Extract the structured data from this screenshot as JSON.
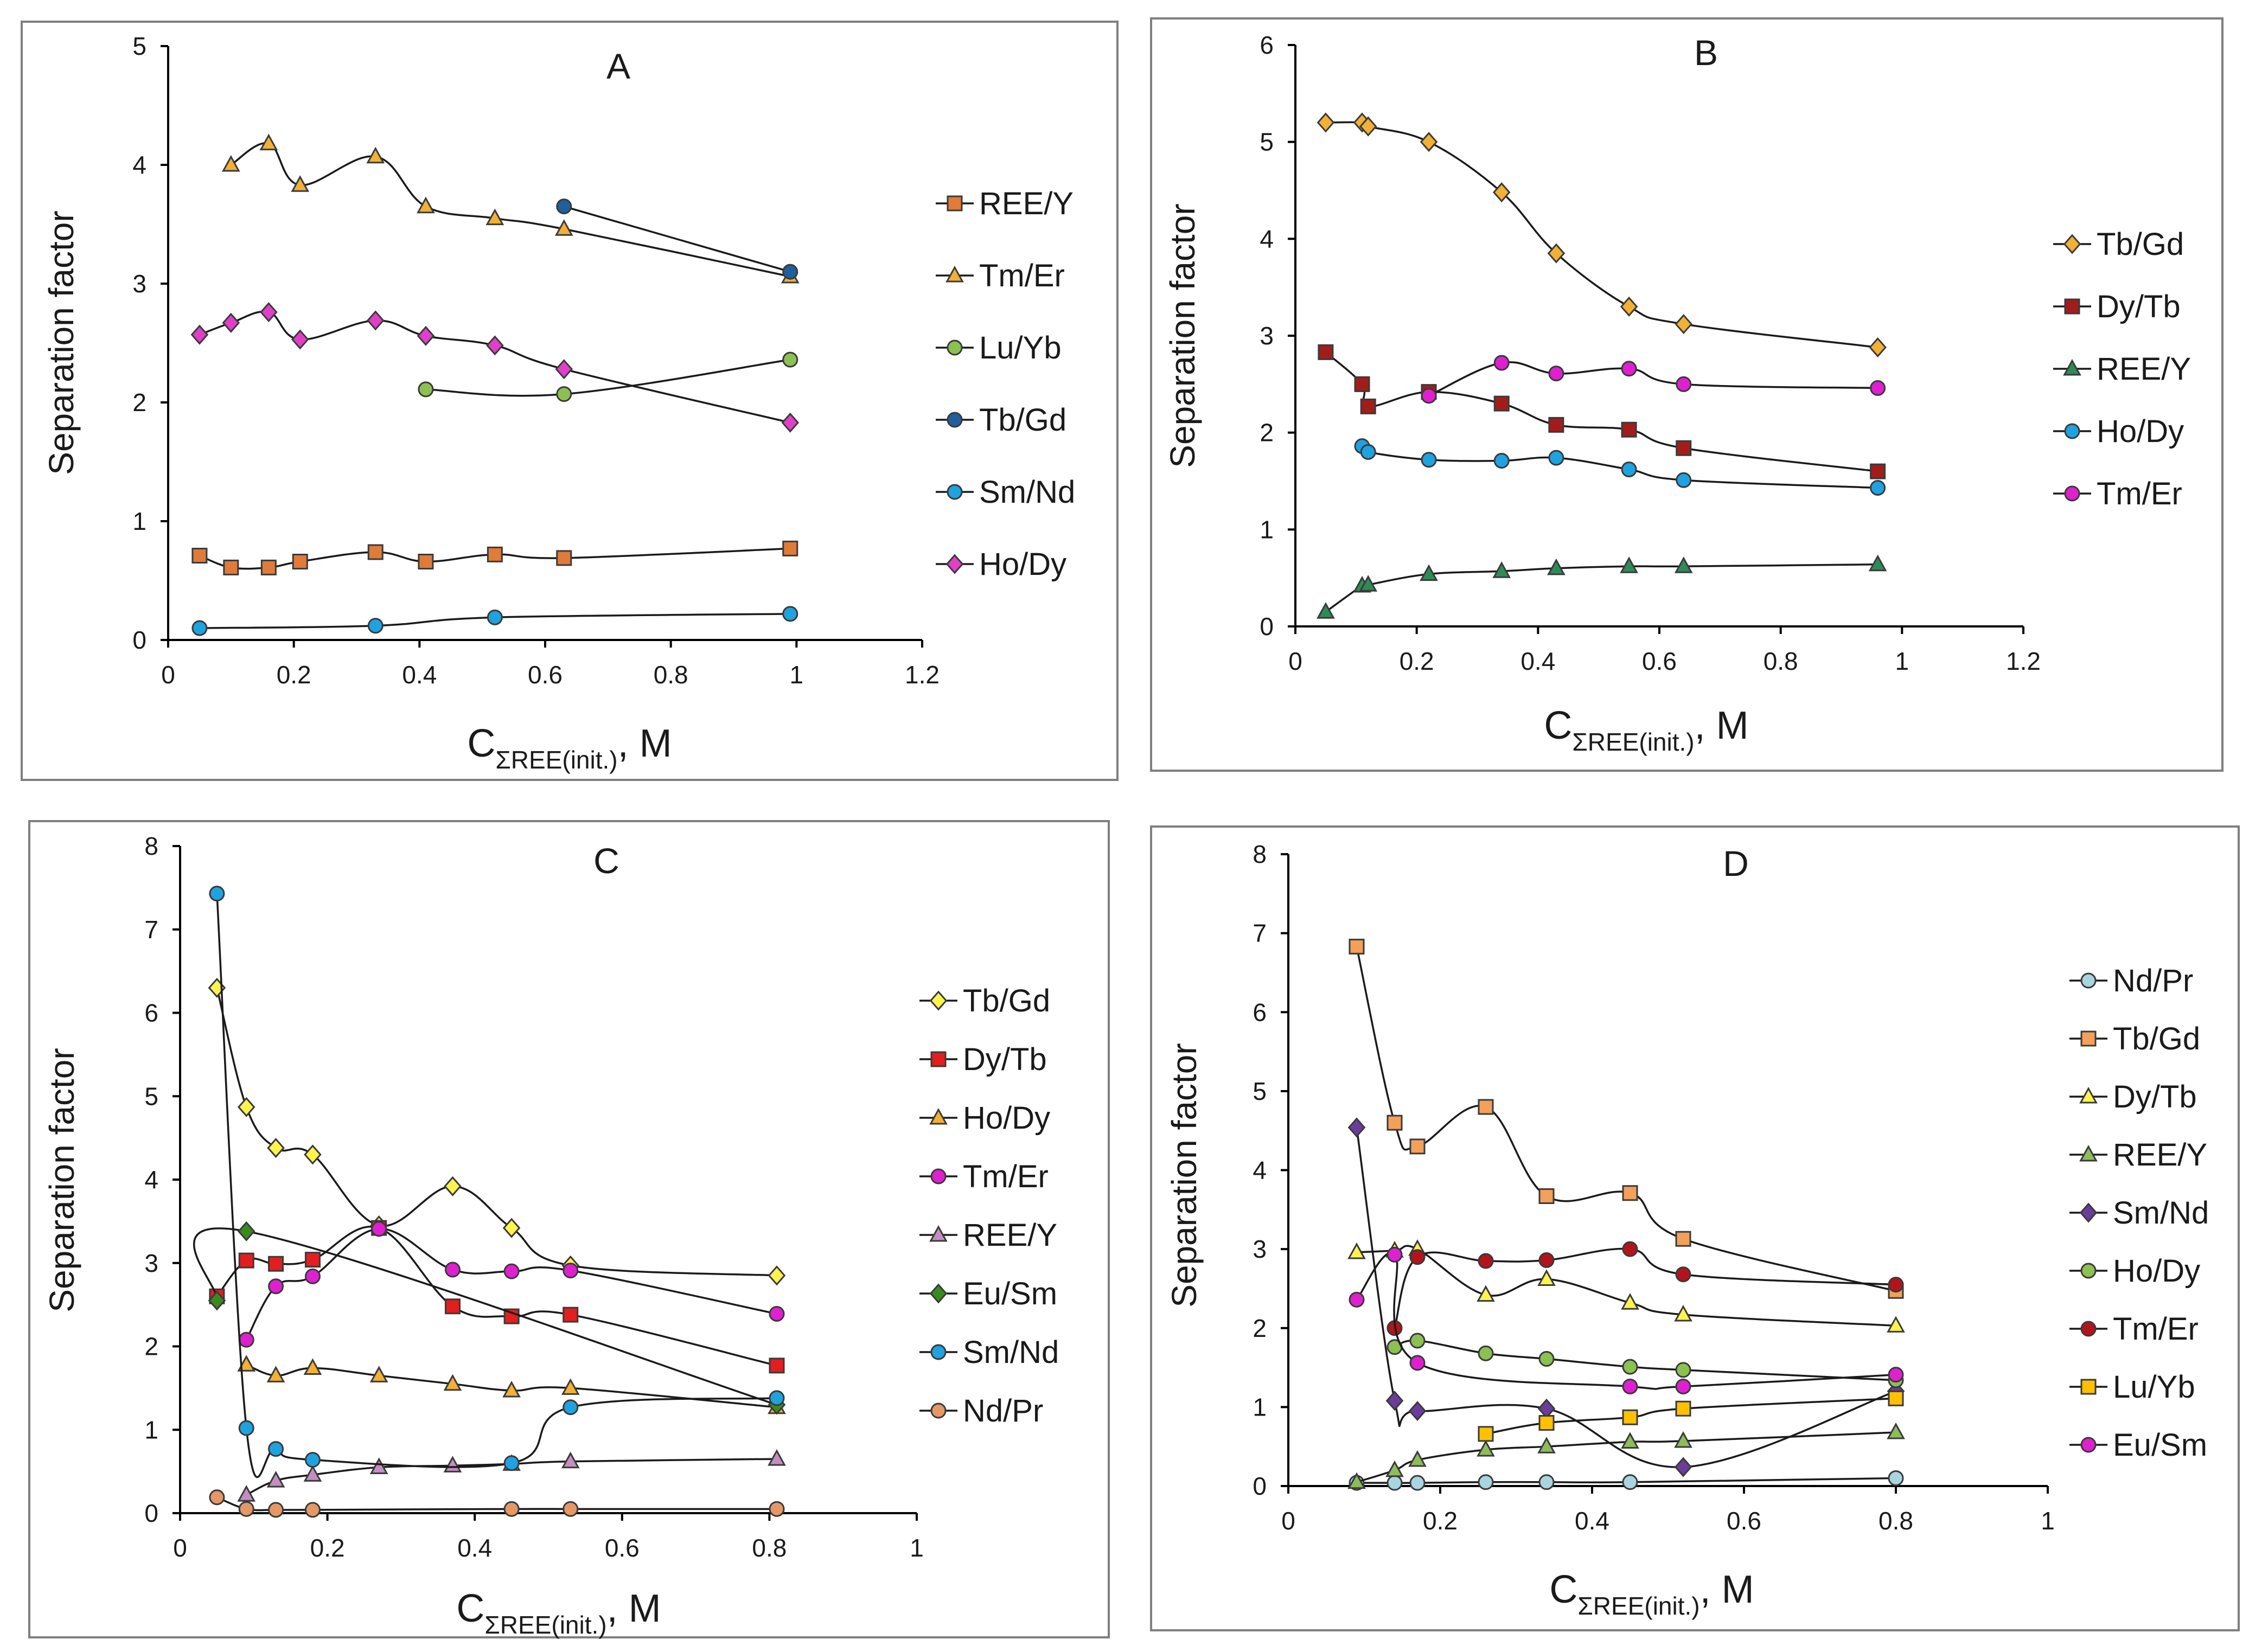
{
  "chart_data": [
    {
      "type": "line",
      "panel": "A",
      "title": "A",
      "ylabel": "Separation factor",
      "xlabel": {
        "main": "C",
        "sub": "ΣREE(init.)",
        "unit": ", M"
      },
      "xlim": [
        0,
        1.2
      ],
      "ylim": [
        0,
        5
      ],
      "xticks": [
        "0",
        "0.2",
        "0.4",
        "0.6",
        "0.8",
        "1",
        "1.2"
      ],
      "yticks": [
        "0",
        "1",
        "2",
        "3",
        "4",
        "5"
      ],
      "series": [
        {
          "name": "REE/Y",
          "marker": "square",
          "color": "#e07b39",
          "x": [
            0.05,
            0.1,
            0.16,
            0.21,
            0.33,
            0.41,
            0.52,
            0.63,
            0.99
          ],
          "y": [
            0.71,
            0.61,
            0.61,
            0.66,
            0.74,
            0.66,
            0.72,
            0.69,
            0.77
          ]
        },
        {
          "name": "Tm/Er",
          "marker": "triangle",
          "color": "#f2b035",
          "x": [
            0.1,
            0.16,
            0.21,
            0.33,
            0.41,
            0.52,
            0.63,
            0.99
          ],
          "y": [
            4.0,
            4.18,
            3.83,
            4.07,
            3.65,
            3.55,
            3.46,
            3.06
          ]
        },
        {
          "name": "Lu/Yb",
          "marker": "circle",
          "color": "#8cc152",
          "x": [
            0.41,
            0.63,
            0.99
          ],
          "y": [
            2.11,
            2.07,
            2.36
          ]
        },
        {
          "name": "Tb/Gd",
          "marker": "circle",
          "color": "#1f5f9e",
          "x": [
            0.63,
            0.99
          ],
          "y": [
            3.65,
            3.1
          ]
        },
        {
          "name": "Sm/Nd",
          "marker": "circle",
          "color": "#1fa2e0",
          "x": [
            0.05,
            0.33,
            0.52,
            0.99
          ],
          "y": [
            0.1,
            0.12,
            0.19,
            0.22
          ]
        },
        {
          "name": "Ho/Dy",
          "marker": "diamond",
          "color": "#e040c8",
          "x": [
            0.05,
            0.1,
            0.16,
            0.21,
            0.33,
            0.41,
            0.52,
            0.63,
            0.99
          ],
          "y": [
            2.57,
            2.67,
            2.76,
            2.53,
            2.69,
            2.56,
            2.48,
            2.28,
            1.83
          ]
        }
      ]
    },
    {
      "type": "line",
      "panel": "B",
      "title": "B",
      "ylabel": "Separation factor",
      "xlabel": {
        "main": "C",
        "sub": "ΣREE(init.)",
        "unit": ", M"
      },
      "xlim": [
        0,
        1.2
      ],
      "ylim": [
        0,
        6
      ],
      "xticks": [
        "0",
        "0.2",
        "0.4",
        "0.6",
        "0.8",
        "1",
        "1.2"
      ],
      "yticks": [
        "0",
        "1",
        "2",
        "3",
        "4",
        "5",
        "6"
      ],
      "series": [
        {
          "name": "Tb/Gd",
          "marker": "diamond",
          "color": "#f2b035",
          "x": [
            0.05,
            0.11,
            0.12,
            0.22,
            0.34,
            0.43,
            0.55,
            0.64,
            0.96
          ],
          "y": [
            5.2,
            5.2,
            5.16,
            5.0,
            4.48,
            3.85,
            3.3,
            3.12,
            2.88
          ]
        },
        {
          "name": "Dy/Tb",
          "marker": "square",
          "color": "#a31c1c",
          "x": [
            0.05,
            0.11,
            0.12,
            0.22,
            0.34,
            0.43,
            0.55,
            0.64,
            0.96
          ],
          "y": [
            2.83,
            2.5,
            2.27,
            2.42,
            2.3,
            2.08,
            2.03,
            1.84,
            1.6
          ]
        },
        {
          "name": "REE/Y",
          "marker": "triangle",
          "color": "#2e8b57",
          "x": [
            0.05,
            0.11,
            0.12,
            0.22,
            0.34,
            0.43,
            0.55,
            0.64,
            0.96
          ],
          "y": [
            0.15,
            0.42,
            0.43,
            0.54,
            0.57,
            0.6,
            0.62,
            0.62,
            0.64
          ]
        },
        {
          "name": "Ho/Dy",
          "marker": "circle",
          "color": "#1fa2e0",
          "x": [
            0.11,
            0.12,
            0.22,
            0.34,
            0.43,
            0.55,
            0.64,
            0.96
          ],
          "y": [
            1.86,
            1.8,
            1.72,
            1.71,
            1.74,
            1.62,
            1.51,
            1.43
          ]
        },
        {
          "name": "Tm/Er",
          "marker": "circle",
          "color": "#e020d0",
          "x": [
            0.22,
            0.34,
            0.43,
            0.55,
            0.64,
            0.96
          ],
          "y": [
            2.38,
            2.72,
            2.61,
            2.66,
            2.5,
            2.46
          ]
        }
      ]
    },
    {
      "type": "line",
      "panel": "C",
      "title": "C",
      "ylabel": "Separation factor",
      "xlabel": {
        "main": "C",
        "sub": "ΣREE(init.)",
        "unit": ", M"
      },
      "xlim": [
        0,
        1
      ],
      "ylim": [
        0,
        8
      ],
      "xticks": [
        "0",
        "0.2",
        "0.4",
        "0.6",
        "0.8",
        "1"
      ],
      "yticks": [
        "0",
        "1",
        "2",
        "3",
        "4",
        "5",
        "6",
        "7",
        "8"
      ],
      "series": [
        {
          "name": "Tb/Gd",
          "marker": "diamond",
          "color": "#fff34d",
          "x": [
            0.05,
            0.09,
            0.13,
            0.18,
            0.27,
            0.37,
            0.45,
            0.53,
            0.81
          ],
          "y": [
            6.3,
            4.87,
            4.38,
            4.3,
            3.45,
            3.92,
            3.42,
            2.97,
            2.85
          ]
        },
        {
          "name": "Dy/Tb",
          "marker": "square",
          "color": "#e31e1e",
          "x": [
            0.05,
            0.09,
            0.13,
            0.18,
            0.27,
            0.37,
            0.45,
            0.53,
            0.81
          ],
          "y": [
            2.6,
            3.03,
            2.99,
            3.04,
            3.42,
            2.48,
            2.36,
            2.38,
            1.77
          ]
        },
        {
          "name": "Ho/Dy",
          "marker": "triangle",
          "color": "#f2b035",
          "x": [
            0.09,
            0.13,
            0.18,
            0.27,
            0.37,
            0.45,
            0.53,
            0.81
          ],
          "y": [
            1.78,
            1.65,
            1.74,
            1.65,
            1.55,
            1.47,
            1.5,
            1.27
          ]
        },
        {
          "name": "Tm/Er",
          "marker": "circle",
          "color": "#e020d0",
          "x": [
            0.09,
            0.13,
            0.18,
            0.27,
            0.37,
            0.45,
            0.53,
            0.81
          ],
          "y": [
            2.08,
            2.72,
            2.84,
            3.41,
            2.92,
            2.9,
            2.91,
            2.39
          ]
        },
        {
          "name": "REE/Y",
          "marker": "triangle",
          "color": "#c48ec0",
          "x": [
            0.09,
            0.13,
            0.18,
            0.27,
            0.37,
            0.45,
            0.53,
            0.81
          ],
          "y": [
            0.22,
            0.39,
            0.46,
            0.55,
            0.57,
            0.59,
            0.62,
            0.65
          ]
        },
        {
          "name": "Eu/Sm",
          "marker": "diamond",
          "color": "#3a8a1e",
          "x": [
            0.05,
            0.09,
            0.81
          ],
          "y": [
            2.55,
            3.38,
            1.3
          ]
        },
        {
          "name": "Sm/Nd",
          "marker": "circle",
          "color": "#1fa2e0",
          "x": [
            0.05,
            0.09,
            0.13,
            0.18,
            0.45,
            0.53,
            0.81
          ],
          "y": [
            7.43,
            1.02,
            0.77,
            0.64,
            0.6,
            1.27,
            1.38
          ]
        },
        {
          "name": "Nd/Pr",
          "marker": "circle",
          "color": "#e59866",
          "x": [
            0.05,
            0.09,
            0.13,
            0.18,
            0.45,
            0.53,
            0.81
          ],
          "y": [
            0.19,
            0.05,
            0.04,
            0.04,
            0.05,
            0.05,
            0.05
          ]
        }
      ]
    },
    {
      "type": "line",
      "panel": "D",
      "title": "D",
      "ylabel": "Separation factor",
      "xlabel": {
        "main": "C",
        "sub": "ΣREE(init.)",
        "unit": ", M"
      },
      "xlim": [
        0,
        1
      ],
      "ylim": [
        0,
        8
      ],
      "xticks": [
        "0",
        "0.2",
        "0.4",
        "0.6",
        "0.8",
        "1"
      ],
      "yticks": [
        "0",
        "1",
        "2",
        "3",
        "4",
        "5",
        "6",
        "7",
        "8"
      ],
      "series": [
        {
          "name": "Nd/Pr",
          "marker": "circle",
          "color": "#a9d5e0",
          "x": [
            0.09,
            0.14,
            0.17,
            0.26,
            0.34,
            0.45,
            0.8
          ],
          "y": [
            0.04,
            0.04,
            0.04,
            0.05,
            0.05,
            0.05,
            0.1
          ]
        },
        {
          "name": "Tb/Gd",
          "marker": "square",
          "color": "#f2a05a",
          "x": [
            0.09,
            0.14,
            0.17,
            0.26,
            0.34,
            0.45,
            0.52,
            0.8
          ],
          "y": [
            6.83,
            4.6,
            4.3,
            4.8,
            3.67,
            3.71,
            3.13,
            2.47
          ]
        },
        {
          "name": "Dy/Tb",
          "marker": "triangle",
          "color": "#fff34d",
          "x": [
            0.09,
            0.14,
            0.17,
            0.26,
            0.34,
            0.45,
            0.52,
            0.8
          ],
          "y": [
            2.96,
            2.98,
            3.0,
            2.42,
            2.62,
            2.32,
            2.17,
            2.03
          ]
        },
        {
          "name": "REE/Y",
          "marker": "triangle",
          "color": "#8fbc5a",
          "x": [
            0.09,
            0.14,
            0.17,
            0.26,
            0.34,
            0.45,
            0.52,
            0.8
          ],
          "y": [
            0.05,
            0.2,
            0.33,
            0.46,
            0.5,
            0.56,
            0.57,
            0.68
          ]
        },
        {
          "name": "Sm/Nd",
          "marker": "diamond",
          "color": "#6a3d9a",
          "x": [
            0.09,
            0.14,
            0.17,
            0.34,
            0.52,
            0.8
          ],
          "y": [
            4.54,
            1.08,
            0.95,
            0.98,
            0.24,
            1.2
          ]
        },
        {
          "name": "Ho/Dy",
          "marker": "circle",
          "color": "#8cc152",
          "x": [
            0.14,
            0.17,
            0.26,
            0.34,
            0.45,
            0.52,
            0.8
          ],
          "y": [
            1.76,
            1.84,
            1.68,
            1.61,
            1.51,
            1.47,
            1.34
          ]
        },
        {
          "name": "Tm/Er",
          "marker": "circle",
          "color": "#b3141c",
          "x": [
            0.14,
            0.17,
            0.26,
            0.34,
            0.45,
            0.52,
            0.8
          ],
          "y": [
            2.0,
            2.9,
            2.85,
            2.86,
            3.0,
            2.68,
            2.55
          ]
        },
        {
          "name": "Lu/Yb",
          "marker": "square",
          "color": "#ffc000",
          "x": [
            0.26,
            0.34,
            0.45,
            0.52,
            0.8
          ],
          "y": [
            0.66,
            0.8,
            0.87,
            0.98,
            1.11
          ]
        },
        {
          "name": "Eu/Sm",
          "marker": "circle",
          "color": "#e020d0",
          "x": [
            0.09,
            0.14,
            0.17,
            0.45,
            0.52,
            0.8
          ],
          "y": [
            2.36,
            2.93,
            1.56,
            1.26,
            1.26,
            1.41
          ]
        }
      ]
    }
  ]
}
